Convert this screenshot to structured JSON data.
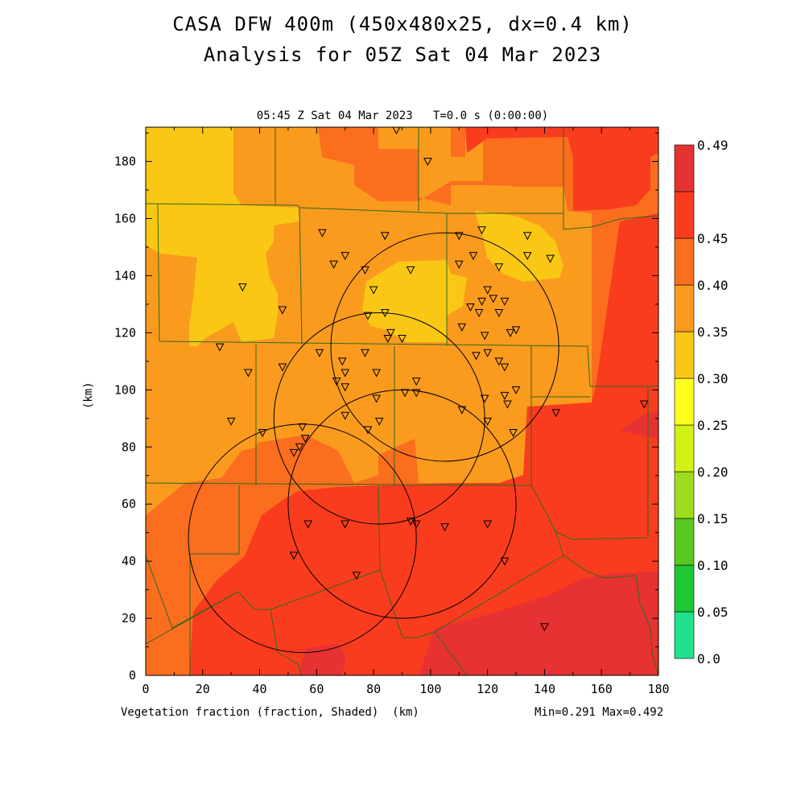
{
  "title_line1": "CASA DFW 400m (450x480x25, dx=0.4 km)",
  "title_line2": "Analysis for 05Z Sat 04 Mar 2023",
  "plot_subtitle": "05:45 Z Sat 04 Mar 2023   T=0.0 s (0:00:00)",
  "x_axis_label": "Vegetation fraction (fraction, Shaded)  (km)",
  "y_axis_label": "(km)",
  "min_max": "Min=0.291 Max=0.492",
  "x_ticks": [
    "0",
    "20",
    "40",
    "60",
    "80",
    "100",
    "120",
    "140",
    "160",
    "180"
  ],
  "y_ticks": [
    "0",
    "20",
    "40",
    "60",
    "80",
    "100",
    "120",
    "140",
    "160",
    "180"
  ],
  "colorbar": {
    "labels": [
      "0.0",
      "0.05",
      "0.10",
      "0.15",
      "0.20",
      "0.25",
      "0.30",
      "0.35",
      "0.40",
      "0.45",
      "0.49"
    ],
    "colors": [
      "#1ee28c",
      "#1ec832",
      "#5ac81e",
      "#a0dc1e",
      "#d2f014",
      "#ffff1e",
      "#fac814",
      "#fa9b1e",
      "#fa6e1e",
      "#fa3c1e",
      "#e63232"
    ]
  },
  "map_fill_colors": {
    "c025": "#fac814",
    "c030": "#fa9b1e",
    "c035": "#fa6e1e",
    "c040": "#fa3c1e",
    "c045": "#e63232"
  },
  "radar_rings": [
    {
      "cx_km": 105,
      "cy_km": 115,
      "r_km": 40
    },
    {
      "cx_km": 82,
      "cy_km": 90,
      "r_km": 37
    },
    {
      "cx_km": 90,
      "cy_km": 60,
      "r_km": 40
    },
    {
      "cx_km": 55,
      "cy_km": 48,
      "r_km": 40
    }
  ],
  "stations_km": [
    [
      88,
      191
    ],
    [
      99,
      180
    ],
    [
      62,
      155
    ],
    [
      84,
      154
    ],
    [
      110,
      154
    ],
    [
      118,
      156
    ],
    [
      134,
      154
    ],
    [
      70,
      147
    ],
    [
      66,
      144
    ],
    [
      77,
      142
    ],
    [
      93,
      142
    ],
    [
      110,
      144
    ],
    [
      115,
      147
    ],
    [
      124,
      143
    ],
    [
      134,
      147
    ],
    [
      142,
      146
    ],
    [
      34,
      136
    ],
    [
      48,
      128
    ],
    [
      80,
      135
    ],
    [
      78,
      126
    ],
    [
      84,
      127
    ],
    [
      120,
      135
    ],
    [
      118,
      131
    ],
    [
      114,
      129
    ],
    [
      117,
      127
    ],
    [
      124,
      127
    ],
    [
      126,
      131
    ],
    [
      122,
      132
    ],
    [
      111,
      122
    ],
    [
      119,
      119
    ],
    [
      128,
      120
    ],
    [
      130,
      121
    ],
    [
      86,
      120
    ],
    [
      85,
      118
    ],
    [
      90,
      118
    ],
    [
      26,
      115
    ],
    [
      61,
      113
    ],
    [
      69,
      110
    ],
    [
      77,
      113
    ],
    [
      116,
      112
    ],
    [
      120,
      113
    ],
    [
      124,
      110
    ],
    [
      126,
      108
    ],
    [
      36,
      106
    ],
    [
      48,
      108
    ],
    [
      67,
      103
    ],
    [
      70,
      106
    ],
    [
      81,
      106
    ],
    [
      70,
      101
    ],
    [
      95,
      103
    ],
    [
      95,
      99
    ],
    [
      91,
      99
    ],
    [
      81,
      97
    ],
    [
      119,
      97
    ],
    [
      126,
      98
    ],
    [
      130,
      100
    ],
    [
      127,
      95
    ],
    [
      144,
      92
    ],
    [
      111,
      93
    ],
    [
      30,
      89
    ],
    [
      70,
      91
    ],
    [
      82,
      89
    ],
    [
      78,
      86
    ],
    [
      129,
      85
    ],
    [
      120,
      89
    ],
    [
      175,
      95
    ],
    [
      41,
      85
    ],
    [
      55,
      87
    ],
    [
      56,
      83
    ],
    [
      54,
      80
    ],
    [
      52,
      78
    ],
    [
      57,
      53
    ],
    [
      70,
      53
    ],
    [
      93,
      54
    ],
    [
      95,
      53
    ],
    [
      105,
      52
    ],
    [
      120,
      53
    ],
    [
      52,
      42
    ],
    [
      126,
      40
    ],
    [
      74,
      35
    ],
    [
      140,
      17
    ]
  ]
}
